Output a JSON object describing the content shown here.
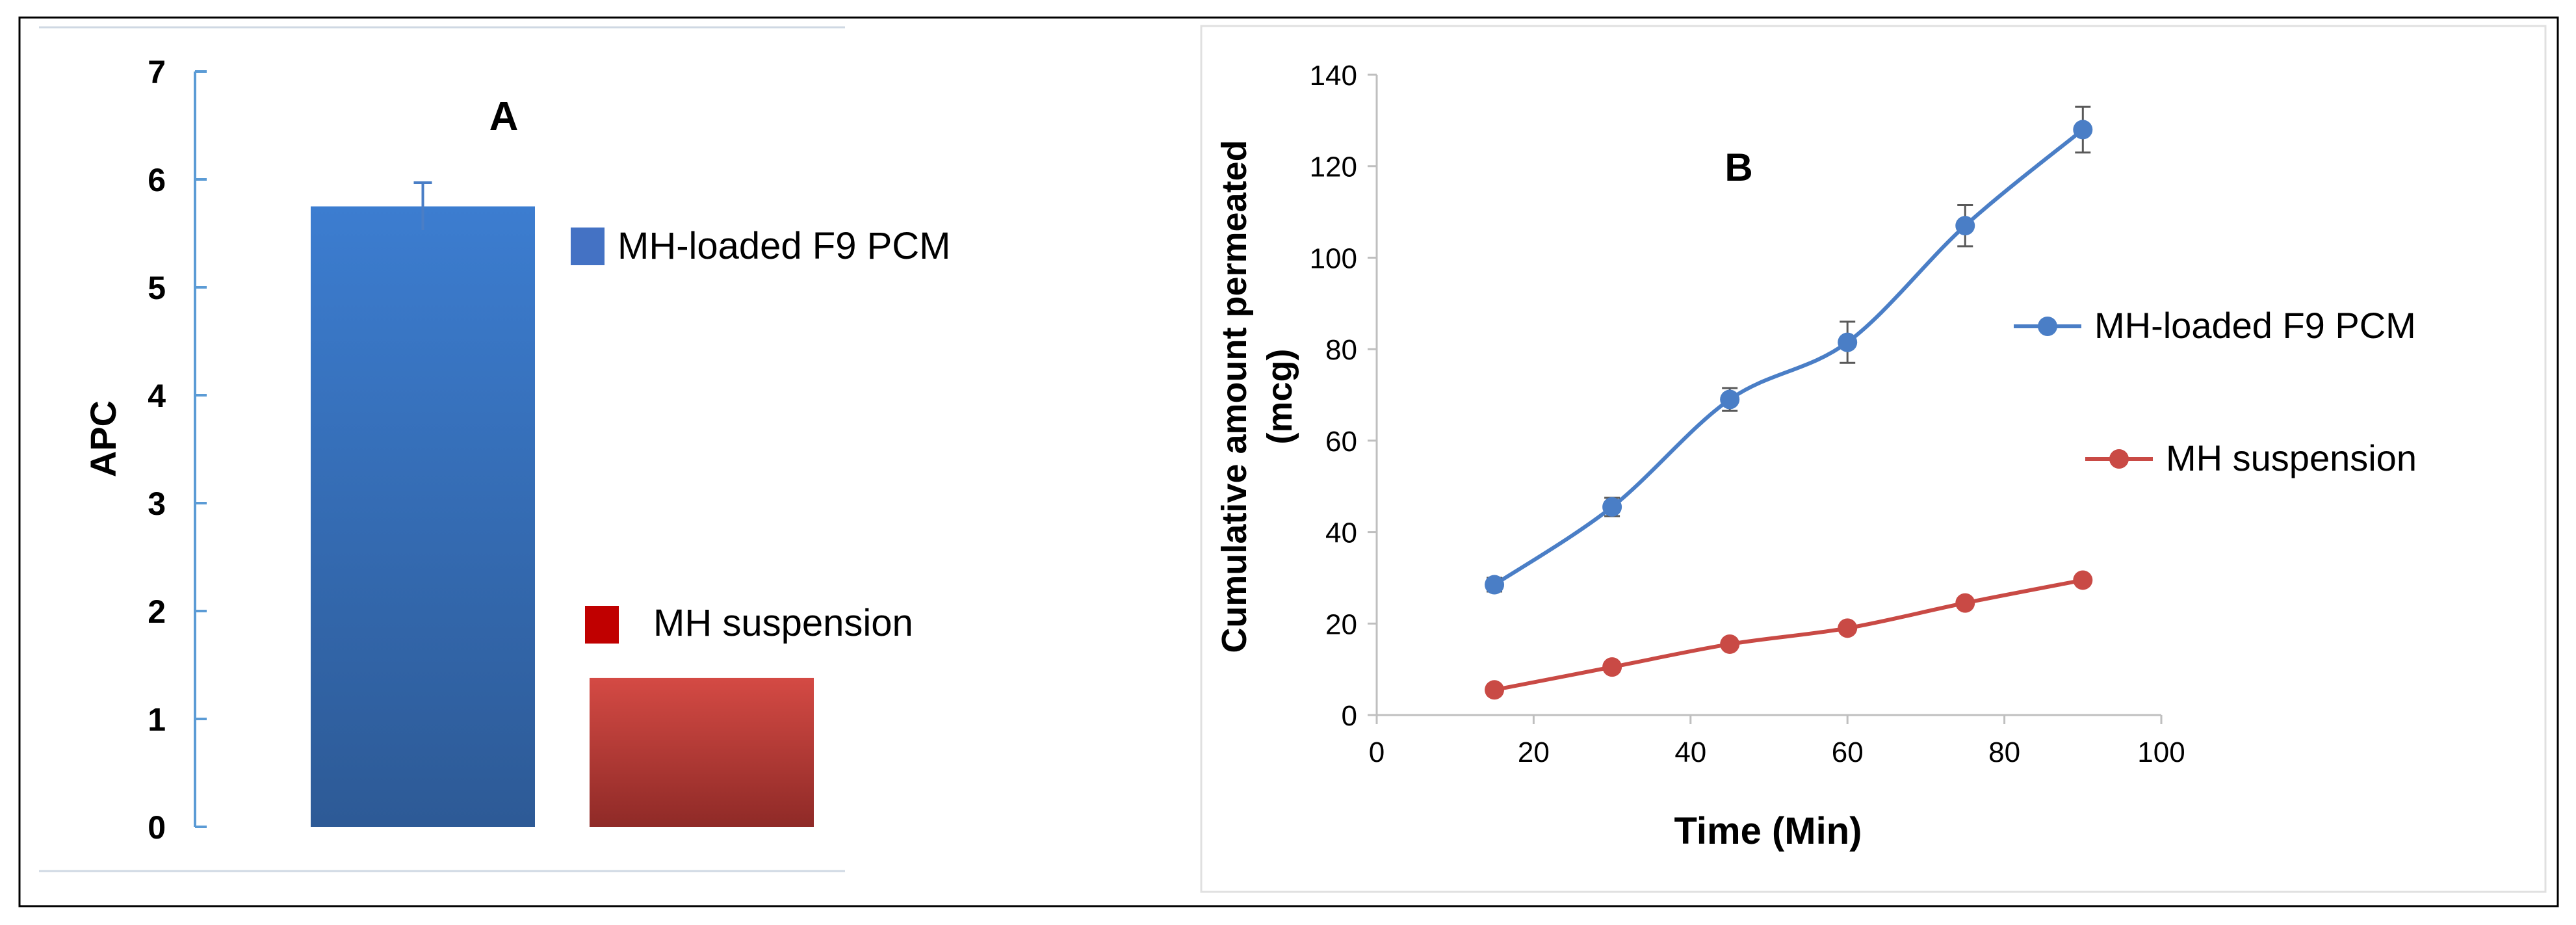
{
  "colors": {
    "blue": "#3b78c6",
    "blue_dark": "#2e5d9a",
    "red": "#c94a45",
    "red_dark": "#9b2d29",
    "legend_red": "#c00000",
    "axis_blue": "#5b9bd5",
    "axis_gray": "#bfbfbf",
    "text": "#000000",
    "frame": "#000000"
  },
  "chart_data": [
    {
      "panel": "A",
      "type": "bar",
      "title": "A",
      "ylabel": "APC",
      "xlabel": "",
      "ylim": [
        0,
        7
      ],
      "yticks": [
        "0",
        "1",
        "2",
        "3",
        "4",
        "5",
        "6",
        "7"
      ],
      "categories": [
        "MH-loaded F9 PCM",
        "MH suspension"
      ],
      "values": [
        5.75,
        1.38
      ],
      "errors": [
        0.22,
        0
      ],
      "legend": [
        {
          "label": "MH-loaded F9 PCM",
          "color": "blue"
        },
        {
          "label": "MH suspension",
          "color": "red"
        }
      ]
    },
    {
      "panel": "B",
      "type": "line",
      "title": "B",
      "xlabel": "Time (Min)",
      "ylabel_line1": "Cumulative amount permeated",
      "ylabel_line2": "(mcg)",
      "xlim": [
        0,
        100
      ],
      "ylim": [
        0,
        140
      ],
      "xticks": [
        "0",
        "20",
        "40",
        "60",
        "80",
        "100"
      ],
      "yticks": [
        "0",
        "20",
        "40",
        "60",
        "80",
        "100",
        "120",
        "140"
      ],
      "x": [
        15,
        30,
        45,
        60,
        75,
        90
      ],
      "series": [
        {
          "name": "MH-loaded F9 PCM",
          "color": "blue",
          "values": [
            28.5,
            45.5,
            69,
            81.5,
            107,
            128
          ],
          "errors": [
            1.5,
            2,
            2.5,
            4.5,
            4.5,
            5
          ]
        },
        {
          "name": "MH suspension",
          "color": "red",
          "values": [
            5.5,
            10.5,
            15.5,
            19,
            24.5,
            29.5
          ],
          "errors": [
            1,
            1,
            1,
            1,
            1,
            1
          ]
        }
      ]
    }
  ]
}
